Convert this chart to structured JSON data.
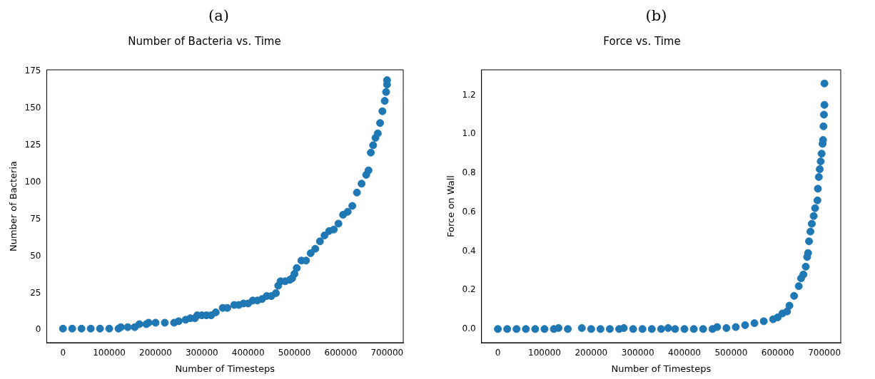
{
  "chart_data": [
    {
      "type": "scatter",
      "title": "Number of Bacteria vs. Time",
      "xlabel": "Number of Timesteps",
      "ylabel": "Number of Bacteria",
      "annotations": [
        "(a)"
      ],
      "grid": false,
      "legend": false,
      "marker": "circle",
      "xlim": [
        -35000,
        735000
      ],
      "xticks": [
        0,
        100000,
        200000,
        300000,
        400000,
        500000,
        600000,
        700000
      ],
      "ylim": [
        -8.5,
        176
      ],
      "yticks": [
        0,
        25,
        50,
        75,
        100,
        125,
        150,
        175
      ],
      "series": [
        {
          "color": "#1f77b4",
          "x": [
            0,
            20000,
            40000,
            60000,
            80000,
            100000,
            120000,
            125000,
            140000,
            155000,
            165000,
            180000,
            185000,
            200000,
            220000,
            240000,
            250000,
            265000,
            275000,
            285000,
            290000,
            300000,
            310000,
            320000,
            330000,
            345000,
            355000,
            370000,
            380000,
            390000,
            400000,
            410000,
            420000,
            430000,
            440000,
            450000,
            460000,
            465000,
            470000,
            480000,
            490000,
            495000,
            500000,
            505000,
            515000,
            525000,
            535000,
            545000,
            555000,
            565000,
            575000,
            585000,
            595000,
            605000,
            615000,
            625000,
            635000,
            645000,
            655000,
            660000,
            665000,
            670000,
            675000,
            680000,
            685000,
            690000,
            695000,
            698000,
            700000,
            700000
          ],
          "values": [
            1,
            1,
            1,
            1,
            1,
            1,
            1,
            2,
            2,
            2,
            4,
            4,
            5,
            5,
            5,
            5,
            6,
            7,
            8,
            8,
            10,
            10,
            10,
            10,
            12,
            15,
            15,
            17,
            17,
            18,
            18,
            20,
            20,
            21,
            23,
            23,
            25,
            30,
            33,
            33,
            34,
            35,
            38,
            42,
            47,
            47,
            52,
            55,
            60,
            64,
            67,
            68,
            72,
            78,
            80,
            84,
            93,
            99,
            105,
            108,
            120,
            125,
            130,
            133,
            140,
            148,
            155,
            161,
            166,
            169
          ]
        }
      ]
    },
    {
      "type": "scatter",
      "title": "Force vs. Time",
      "xlabel": "Number of Timesteps",
      "ylabel": "Force on Wall",
      "annotations": [
        "(b)"
      ],
      "grid": false,
      "legend": false,
      "marker": "circle",
      "xlim": [
        -35000,
        735000
      ],
      "xticks": [
        0,
        100000,
        200000,
        300000,
        400000,
        500000,
        600000,
        700000
      ],
      "ylim": [
        -0.07,
        1.33
      ],
      "yticks": [
        {
          "value": 0,
          "label": "0.0"
        },
        {
          "value": 0.2,
          "label": "0.2"
        },
        {
          "value": 0.4,
          "label": "0.4"
        },
        {
          "value": 0.6,
          "label": "0.6"
        },
        {
          "value": 0.8,
          "label": "0.8"
        },
        {
          "value": 1,
          "label": "1.0"
        },
        {
          "value": 1.2,
          "label": "1.2"
        }
      ],
      "series": [
        {
          "color": "#1f77b4",
          "x": [
            0,
            20000,
            40000,
            60000,
            80000,
            100000,
            120000,
            130000,
            150000,
            180000,
            200000,
            220000,
            240000,
            260000,
            270000,
            290000,
            310000,
            330000,
            350000,
            365000,
            380000,
            400000,
            420000,
            440000,
            460000,
            470000,
            490000,
            510000,
            530000,
            550000,
            570000,
            590000,
            600000,
            610000,
            620000,
            625000,
            635000,
            645000,
            650000,
            655000,
            660000,
            663000,
            665000,
            667000,
            670000,
            673000,
            677000,
            680000,
            685000,
            686000,
            688000,
            690000,
            692000,
            694000,
            696000,
            697000,
            698000,
            699000,
            700000,
            700000
          ],
          "values": [
            0,
            0,
            0,
            0,
            0,
            0,
            0,
            0.005,
            0,
            0.005,
            0,
            0,
            0,
            0,
            0.005,
            0,
            0,
            0,
            0,
            0.005,
            0,
            0,
            0,
            0,
            0,
            0.01,
            0.005,
            0.01,
            0.02,
            0.03,
            0.04,
            0.05,
            0.06,
            0.08,
            0.09,
            0.12,
            0.17,
            0.22,
            0.26,
            0.28,
            0.32,
            0.37,
            0.39,
            0.45,
            0.5,
            0.54,
            0.58,
            0.62,
            0.66,
            0.72,
            0.78,
            0.82,
            0.86,
            0.9,
            0.95,
            0.97,
            1.04,
            1.1,
            1.15,
            1.26
          ]
        }
      ]
    }
  ]
}
